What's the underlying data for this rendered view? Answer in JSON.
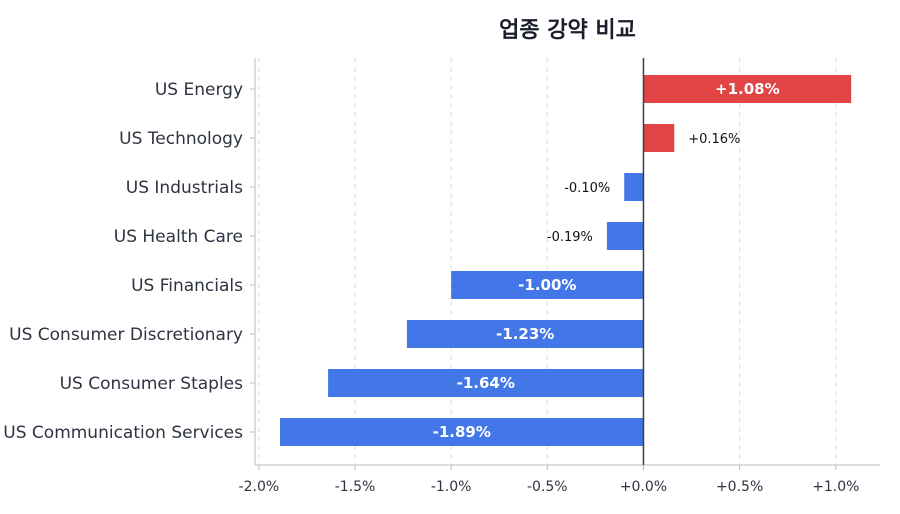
{
  "chart_data": {
    "type": "bar",
    "orientation": "horizontal",
    "title": "업종 강약 비교",
    "categories": [
      "US Energy",
      "US Technology",
      "US Industrials",
      "US Health Care",
      "US Financials",
      "US Consumer Discretionary",
      "US Consumer Staples",
      "US Communication Services"
    ],
    "values": [
      1.08,
      0.16,
      -0.1,
      -0.19,
      -1.0,
      -1.23,
      -1.64,
      -1.89
    ],
    "value_labels": [
      "+1.08%",
      "+0.16%",
      "-0.10%",
      "-0.19%",
      "-1.00%",
      "-1.23%",
      "-1.64%",
      "-1.89%"
    ],
    "x_ticks": [
      -2.0,
      -1.5,
      -1.0,
      -0.5,
      0.0,
      0.5,
      1.0
    ],
    "x_tick_labels": [
      "-2.0%",
      "-1.5%",
      "-1.0%",
      "-0.5%",
      "+0.0%",
      "+0.5%",
      "+1.0%"
    ],
    "xlim": [
      -2.02,
      1.23
    ],
    "grid": "vertical dashed",
    "legend": "none",
    "colors": {
      "positive": "#e04444",
      "negative": "#4377e8",
      "zero_line": "#3a3f4b",
      "grid": "#d9dde3",
      "axis": "#b8bcc4"
    }
  }
}
